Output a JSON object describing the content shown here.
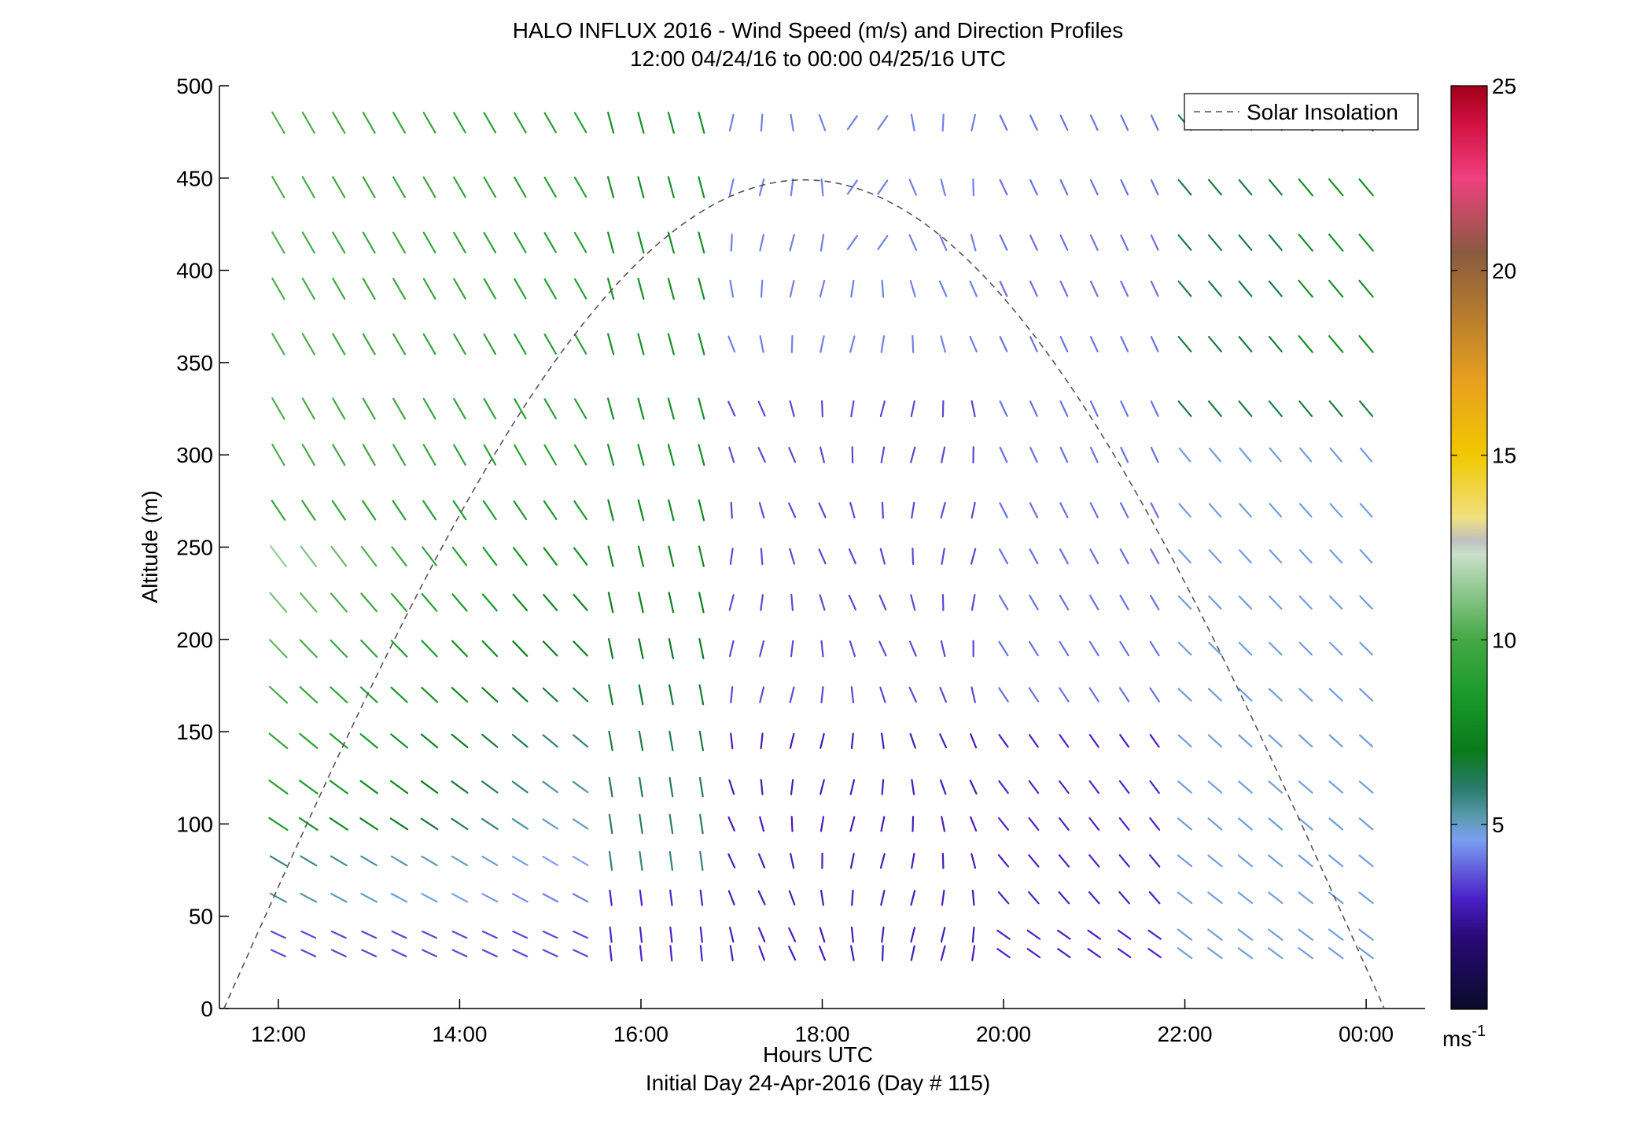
{
  "chart_data": {
    "type": "quiver",
    "title": "HALO INFLUX 2016 - Wind Speed (m/s) and Direction Profiles",
    "subtitle": "12:00 04/24/16 to 00:00 04/25/16  UTC",
    "xlabel": "Hours UTC",
    "xlabel2": "Initial Day 24-Apr-2016 (Day # 115)",
    "ylabel": "Altitude (m)",
    "xlim": [
      11.35,
      24.65
    ],
    "ylim": [
      0,
      500
    ],
    "x_ticks": [
      12,
      14,
      16,
      18,
      20,
      22,
      24
    ],
    "x_tick_labels": [
      "12:00",
      "14:00",
      "16:00",
      "18:00",
      "20:00",
      "22:00",
      "00:00"
    ],
    "y_ticks": [
      0,
      50,
      100,
      150,
      200,
      250,
      300,
      350,
      400,
      450,
      500
    ],
    "y_tick_labels": [
      "0",
      "50",
      "100",
      "150",
      "200",
      "250",
      "300",
      "350",
      "400",
      "450",
      "500"
    ],
    "grid": false,
    "legend": {
      "placement": "top-right",
      "entries": [
        {
          "label": "Solar Insolation",
          "style": "dashed",
          "color": "#555555"
        }
      ]
    },
    "colorbar": {
      "min": 0,
      "max": 25,
      "ticks": [
        5,
        10,
        15,
        20,
        25
      ],
      "tick_labels": [
        "5",
        "10",
        "15",
        "20",
        "25"
      ],
      "unit_label": "ms",
      "unit_exponent": "-1",
      "colormap": [
        [
          0.0,
          "#0a0a2a"
        ],
        [
          2.0,
          "#2a0a7a"
        ],
        [
          3.0,
          "#4a20c8"
        ],
        [
          4.0,
          "#6a70e0"
        ],
        [
          4.6,
          "#7aa0f0"
        ],
        [
          5.2,
          "#5a9ab0"
        ],
        [
          6.0,
          "#2a7a6a"
        ],
        [
          7.0,
          "#0a7a1a"
        ],
        [
          8.5,
          "#1a9a2a"
        ],
        [
          10.0,
          "#44a844"
        ],
        [
          11.5,
          "#9acc9a"
        ],
        [
          12.3,
          "#c8e0c8"
        ],
        [
          12.7,
          "#c0c0c0"
        ],
        [
          13.3,
          "#f0e080"
        ],
        [
          15.0,
          "#f0c800"
        ],
        [
          17.0,
          "#e8a020"
        ],
        [
          19.0,
          "#b07830"
        ],
        [
          20.5,
          "#8a5a40"
        ],
        [
          22.5,
          "#f04080"
        ],
        [
          24.0,
          "#d01040"
        ],
        [
          25.0,
          "#a00018"
        ]
      ]
    },
    "altitudes_m": [
      30,
      40,
      60,
      80,
      100,
      120,
      145,
      170,
      195,
      220,
      245,
      270,
      300,
      325,
      360,
      390,
      415,
      445,
      480
    ],
    "times_h": [
      12.0,
      12.333,
      12.667,
      13.0,
      13.333,
      13.667,
      14.0,
      14.333,
      14.667,
      15.0,
      15.333,
      15.667,
      16.0,
      16.333,
      16.667,
      17.0,
      17.333,
      17.667,
      18.0,
      18.333,
      18.667,
      19.0,
      19.333,
      19.667,
      20.0,
      20.333,
      20.667,
      21.0,
      21.333,
      21.667,
      22.0,
      22.333,
      22.667,
      23.0,
      23.333,
      23.667,
      24.0
    ],
    "solar_insolation_curve": {
      "t_rise_h": 11.4,
      "t_set_h": 24.2,
      "peak_altitude_m": 449
    }
  }
}
